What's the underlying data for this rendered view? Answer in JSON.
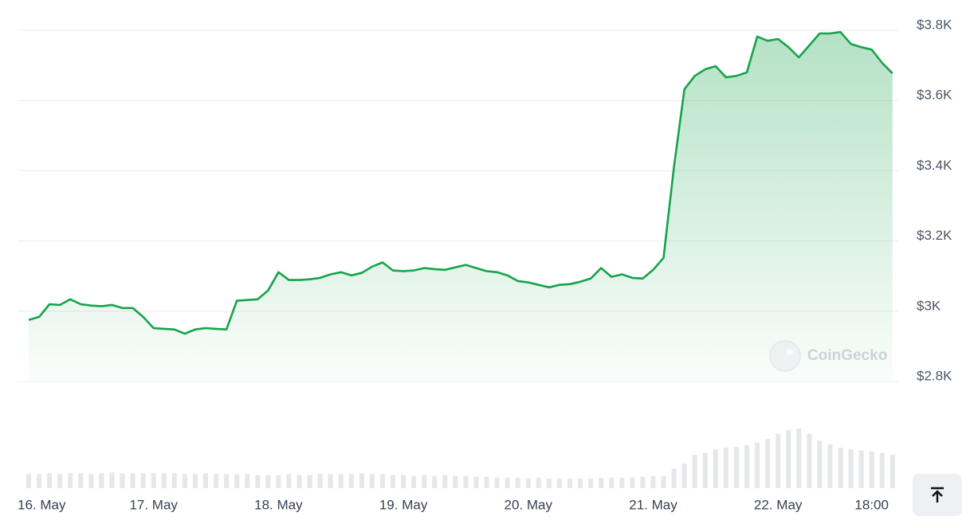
{
  "chart_data": {
    "type": "line",
    "watermark": "CoinGecko",
    "color": "#16a34a",
    "categories": [
      "16. May",
      null,
      null,
      null,
      null,
      null,
      null,
      null,
      null,
      null,
      null,
      null,
      "17. May",
      null,
      null,
      null,
      null,
      null,
      null,
      null,
      null,
      null,
      null,
      null,
      "18. May",
      null,
      null,
      null,
      null,
      null,
      null,
      null,
      null,
      null,
      null,
      null,
      "19. May",
      null,
      null,
      null,
      null,
      null,
      null,
      null,
      null,
      null,
      null,
      null,
      "20. May",
      null,
      null,
      null,
      null,
      null,
      null,
      null,
      null,
      null,
      null,
      null,
      "21. May",
      null,
      null,
      null,
      null,
      null,
      null,
      null,
      null,
      null,
      null,
      null,
      "22. May",
      null,
      null,
      null,
      null,
      null,
      null,
      null,
      null,
      "18:00",
      null,
      null
    ],
    "values": [
      2975,
      2984,
      3020,
      3018,
      3034,
      3020,
      3016,
      3014,
      3018,
      3009,
      3009,
      2984,
      2952,
      2950,
      2948,
      2936,
      2948,
      2952,
      2950,
      2948,
      3030,
      3032,
      3034,
      3059,
      3111,
      3089,
      3089,
      3091,
      3095,
      3105,
      3111,
      3102,
      3109,
      3127,
      3139,
      3116,
      3114,
      3116,
      3123,
      3120,
      3118,
      3125,
      3132,
      3123,
      3114,
      3111,
      3102,
      3086,
      3082,
      3075,
      3068,
      3075,
      3077,
      3084,
      3093,
      3123,
      3098,
      3105,
      3095,
      3093,
      3118,
      3152,
      3411,
      3632,
      3670,
      3689,
      3698,
      3666,
      3670,
      3680,
      3782,
      3770,
      3775,
      3752,
      3723,
      3757,
      3791,
      3791,
      3795,
      3761,
      3752,
      3745,
      3707,
      3677
    ],
    "volume": {
      "color": "#e5e7eb",
      "values": [
        16,
        16,
        17,
        16,
        17,
        17,
        16,
        17,
        18,
        17,
        17,
        17,
        17,
        17,
        17,
        16,
        16,
        17,
        16,
        16,
        16,
        16,
        15,
        15,
        15,
        16,
        15,
        15,
        16,
        16,
        16,
        16,
        17,
        16,
        16,
        15,
        15,
        14,
        15,
        14,
        15,
        14,
        14,
        13,
        13,
        12,
        12,
        12,
        11,
        12,
        11,
        11,
        11,
        11,
        11,
        12,
        12,
        12,
        12,
        13,
        14,
        14,
        22,
        28,
        38,
        40,
        44,
        46,
        47,
        49,
        52,
        56,
        62,
        66,
        68,
        62,
        54,
        50,
        46,
        44,
        43,
        42,
        40,
        38
      ]
    },
    "ylim": [
      2800,
      3800
    ],
    "yticks": [
      {
        "value": 2800,
        "label": "$2.8K"
      },
      {
        "value": 3000,
        "label": "$3K"
      },
      {
        "value": 3200,
        "label": "$3.2K"
      },
      {
        "value": 3400,
        "label": "$3.4K"
      },
      {
        "value": 3600,
        "label": "$3.6K"
      },
      {
        "value": 3800,
        "label": "$3.8K"
      }
    ],
    "grid": true
  }
}
